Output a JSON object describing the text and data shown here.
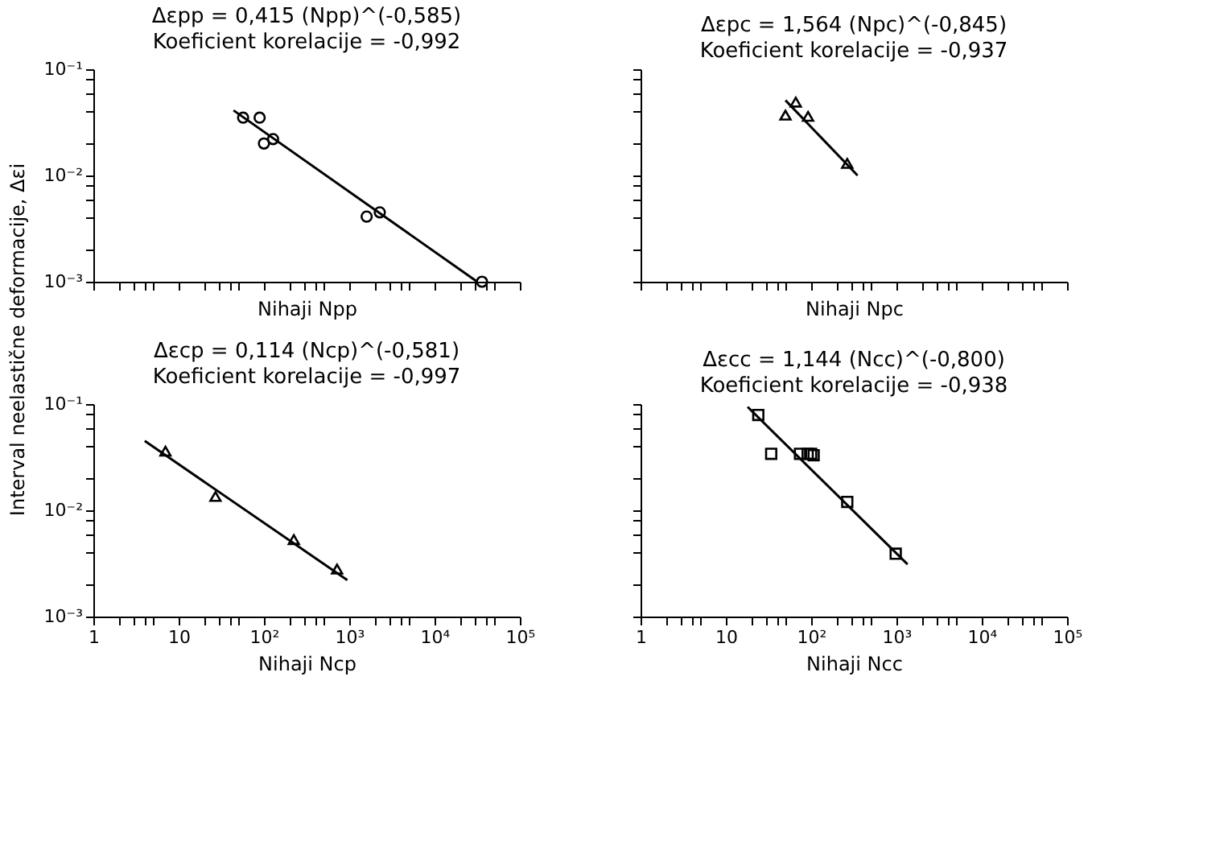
{
  "chart_data": [
    {
      "type": "scatter",
      "title": "Δεpp = 0,415 (Npp)^(-0,585)",
      "subtitle": "Koeficient korelacije = -0,992",
      "xlabel": "Nihaji  Npp",
      "ylabel": "Interval neelastične deformacije, Δεi",
      "log": "xy",
      "grid": false,
      "tick_labels": "y",
      "xlim": [
        1,
        100000
      ],
      "ylim": [
        0.001,
        0.1
      ],
      "xticks": [
        {
          "value": 1,
          "label": null
        },
        {
          "value": 2,
          "label": null
        },
        {
          "value": 3,
          "label": null
        },
        {
          "value": 4,
          "label": null
        },
        {
          "value": 5,
          "label": null
        },
        {
          "value": 10,
          "label": null
        },
        {
          "value": 20,
          "label": null
        },
        {
          "value": 30,
          "label": null
        },
        {
          "value": 40,
          "label": null
        },
        {
          "value": 50,
          "label": null
        },
        {
          "value": 100,
          "label": null
        },
        {
          "value": 200,
          "label": null
        },
        {
          "value": 300,
          "label": null
        },
        {
          "value": 400,
          "label": null
        },
        {
          "value": 500,
          "label": null
        },
        {
          "value": 1000,
          "label": null
        },
        {
          "value": 2000,
          "label": null
        },
        {
          "value": 3000,
          "label": null
        },
        {
          "value": 4000,
          "label": null
        },
        {
          "value": 5000,
          "label": null
        },
        {
          "value": 10000,
          "label": null
        },
        {
          "value": 20000,
          "label": null
        },
        {
          "value": 30000,
          "label": null
        },
        {
          "value": 40000,
          "label": null
        },
        {
          "value": 50000,
          "label": null
        },
        {
          "value": 100000,
          "label": null
        }
      ],
      "yticks": [
        {
          "value": 0.001,
          "label": "10⁻³"
        },
        {
          "value": 0.002,
          "label": null
        },
        {
          "value": 0.004,
          "label": null
        },
        {
          "value": 0.006,
          "label": null
        },
        {
          "value": 0.008,
          "label": null
        },
        {
          "value": 0.01,
          "label": "10⁻²"
        },
        {
          "value": 0.02,
          "label": null
        },
        {
          "value": 0.04,
          "label": null
        },
        {
          "value": 0.06,
          "label": null
        },
        {
          "value": 0.08,
          "label": null
        },
        {
          "value": 0.1,
          "label": "10⁻¹"
        }
      ],
      "series": [
        {
          "type": "scatter",
          "marker": "circle",
          "color": "#000000",
          "x": [
            57,
            89,
            100,
            128,
            1600,
            2280,
            36000
          ],
          "values": [
            0.035,
            0.035,
            0.02,
            0.022,
            0.0041,
            0.0045,
            0.001
          ]
        },
        {
          "type": "line",
          "marker": "none",
          "line_style": "solid",
          "color": "#000000",
          "x": [
            44,
            31600
          ],
          "values": [
            0.041,
            0.001
          ]
        }
      ]
    },
    {
      "type": "scatter",
      "title": "Δεpc = 1,564 (Npc)^(-0,845)",
      "subtitle": "Koeficient korelacije = -0,937",
      "xlabel": "Nihaji  Npc",
      "log": "xy",
      "grid": false,
      "tick_labels": false,
      "xlim": [
        1,
        100000
      ],
      "ylim": [
        0.001,
        0.1
      ],
      "xticks": [
        {
          "value": 1,
          "label": null
        },
        {
          "value": 2,
          "label": null
        },
        {
          "value": 3,
          "label": null
        },
        {
          "value": 4,
          "label": null
        },
        {
          "value": 5,
          "label": null
        },
        {
          "value": 10,
          "label": null
        },
        {
          "value": 20,
          "label": null
        },
        {
          "value": 30,
          "label": null
        },
        {
          "value": 40,
          "label": null
        },
        {
          "value": 50,
          "label": null
        },
        {
          "value": 100,
          "label": null
        },
        {
          "value": 200,
          "label": null
        },
        {
          "value": 300,
          "label": null
        },
        {
          "value": 400,
          "label": null
        },
        {
          "value": 500,
          "label": null
        },
        {
          "value": 1000,
          "label": null
        },
        {
          "value": 2000,
          "label": null
        },
        {
          "value": 3000,
          "label": null
        },
        {
          "value": 4000,
          "label": null
        },
        {
          "value": 5000,
          "label": null
        },
        {
          "value": 10000,
          "label": null
        },
        {
          "value": 20000,
          "label": null
        },
        {
          "value": 30000,
          "label": null
        },
        {
          "value": 40000,
          "label": null
        },
        {
          "value": 50000,
          "label": null
        },
        {
          "value": 100000,
          "label": null
        }
      ],
      "yticks": [
        {
          "value": 0.001,
          "label": null
        },
        {
          "value": 0.002,
          "label": null
        },
        {
          "value": 0.004,
          "label": null
        },
        {
          "value": 0.006,
          "label": null
        },
        {
          "value": 0.008,
          "label": null
        },
        {
          "value": 0.01,
          "label": null
        },
        {
          "value": 0.02,
          "label": null
        },
        {
          "value": 0.04,
          "label": null
        },
        {
          "value": 0.06,
          "label": null
        },
        {
          "value": 0.08,
          "label": null
        },
        {
          "value": 0.1,
          "label": null
        }
      ],
      "series": [
        {
          "type": "scatter",
          "marker": "triangle",
          "color": "#000000",
          "x": [
            50,
            66,
            92,
            265
          ],
          "values": [
            0.037,
            0.049,
            0.036,
            0.013
          ]
        },
        {
          "type": "line",
          "marker": "none",
          "line_style": "solid",
          "color": "#000000",
          "x": [
            50,
            350
          ],
          "values": [
            0.051,
            0.01
          ]
        }
      ]
    },
    {
      "type": "scatter",
      "title": "Δεcp = 0,114 (Ncp)^(-0,581)",
      "subtitle": "Koeficient korelacije = -0,997",
      "xlabel": "Nihaji  Ncp",
      "log": "xy",
      "grid": false,
      "xlim": [
        1,
        100000
      ],
      "ylim": [
        0.001,
        0.1
      ],
      "xticks": [
        {
          "value": 1,
          "label": "1"
        },
        {
          "value": 2,
          "label": null
        },
        {
          "value": 3,
          "label": null
        },
        {
          "value": 4,
          "label": null
        },
        {
          "value": 5,
          "label": null
        },
        {
          "value": 10,
          "label": "10"
        },
        {
          "value": 20,
          "label": null
        },
        {
          "value": 30,
          "label": null
        },
        {
          "value": 40,
          "label": null
        },
        {
          "value": 50,
          "label": null
        },
        {
          "value": 100,
          "label": "10²"
        },
        {
          "value": 200,
          "label": null
        },
        {
          "value": 300,
          "label": null
        },
        {
          "value": 400,
          "label": null
        },
        {
          "value": 500,
          "label": null
        },
        {
          "value": 1000,
          "label": "10³"
        },
        {
          "value": 2000,
          "label": null
        },
        {
          "value": 3000,
          "label": null
        },
        {
          "value": 4000,
          "label": null
        },
        {
          "value": 5000,
          "label": null
        },
        {
          "value": 10000,
          "label": "10⁴"
        },
        {
          "value": 20000,
          "label": null
        },
        {
          "value": 30000,
          "label": null
        },
        {
          "value": 40000,
          "label": null
        },
        {
          "value": 50000,
          "label": null
        },
        {
          "value": 100000,
          "label": "10⁵"
        }
      ],
      "yticks": [
        {
          "value": 0.001,
          "label": "10⁻³"
        },
        {
          "value": 0.002,
          "label": null
        },
        {
          "value": 0.004,
          "label": null
        },
        {
          "value": 0.006,
          "label": null
        },
        {
          "value": 0.008,
          "label": null
        },
        {
          "value": 0.01,
          "label": "10⁻²"
        },
        {
          "value": 0.02,
          "label": null
        },
        {
          "value": 0.04,
          "label": null
        },
        {
          "value": 0.06,
          "label": null
        },
        {
          "value": 0.08,
          "label": null
        },
        {
          "value": 0.1,
          "label": "10⁻¹"
        }
      ],
      "series": [
        {
          "type": "scatter",
          "marker": "triangle",
          "color": "#000000",
          "x": [
            7,
            27,
            224,
            720
          ],
          "values": [
            0.036,
            0.0135,
            0.0053,
            0.0028
          ]
        },
        {
          "type": "line",
          "marker": "none",
          "line_style": "solid",
          "color": "#000000",
          "x": [
            4,
            950
          ],
          "values": [
            0.045,
            0.0022
          ]
        }
      ]
    },
    {
      "type": "scatter",
      "title": "Δεcc = 1,144 (Ncc)^(-0,800)",
      "subtitle": "Koeficient korelacije = -0,938",
      "xlabel": "Nihaji  Ncc",
      "log": "xy",
      "grid": false,
      "tick_labels": "x",
      "xlim": [
        1,
        100000
      ],
      "ylim": [
        0.001,
        0.1
      ],
      "xticks": [
        {
          "value": 1,
          "label": "1"
        },
        {
          "value": 2,
          "label": null
        },
        {
          "value": 3,
          "label": null
        },
        {
          "value": 4,
          "label": null
        },
        {
          "value": 5,
          "label": null
        },
        {
          "value": 10,
          "label": "10"
        },
        {
          "value": 20,
          "label": null
        },
        {
          "value": 30,
          "label": null
        },
        {
          "value": 40,
          "label": null
        },
        {
          "value": 50,
          "label": null
        },
        {
          "value": 100,
          "label": "10²"
        },
        {
          "value": 200,
          "label": null
        },
        {
          "value": 300,
          "label": null
        },
        {
          "value": 400,
          "label": null
        },
        {
          "value": 500,
          "label": null
        },
        {
          "value": 1000,
          "label": "10³"
        },
        {
          "value": 2000,
          "label": null
        },
        {
          "value": 3000,
          "label": null
        },
        {
          "value": 4000,
          "label": null
        },
        {
          "value": 5000,
          "label": null
        },
        {
          "value": 10000,
          "label": "10⁴"
        },
        {
          "value": 20000,
          "label": null
        },
        {
          "value": 30000,
          "label": null
        },
        {
          "value": 40000,
          "label": null
        },
        {
          "value": 50000,
          "label": null
        },
        {
          "value": 100000,
          "label": "10⁵"
        }
      ],
      "yticks": [
        {
          "value": 0.001,
          "label": null
        },
        {
          "value": 0.002,
          "label": null
        },
        {
          "value": 0.004,
          "label": null
        },
        {
          "value": 0.006,
          "label": null
        },
        {
          "value": 0.008,
          "label": null
        },
        {
          "value": 0.01,
          "label": null
        },
        {
          "value": 0.02,
          "label": null
        },
        {
          "value": 0.04,
          "label": null
        },
        {
          "value": 0.06,
          "label": null
        },
        {
          "value": 0.08,
          "label": null
        },
        {
          "value": 0.1,
          "label": null
        }
      ],
      "series": [
        {
          "type": "scatter",
          "marker": "square",
          "color": "#000000",
          "x": [
            24,
            34,
            74,
            91,
            107,
            100,
            265,
            980
          ],
          "values": [
            0.079,
            0.034,
            0.034,
            0.034,
            0.033,
            0.034,
            0.012,
            0.0039
          ]
        },
        {
          "type": "line",
          "marker": "none",
          "line_style": "solid",
          "color": "#000000",
          "x": [
            18,
            1350
          ],
          "values": [
            0.094,
            0.0031
          ]
        }
      ]
    }
  ]
}
